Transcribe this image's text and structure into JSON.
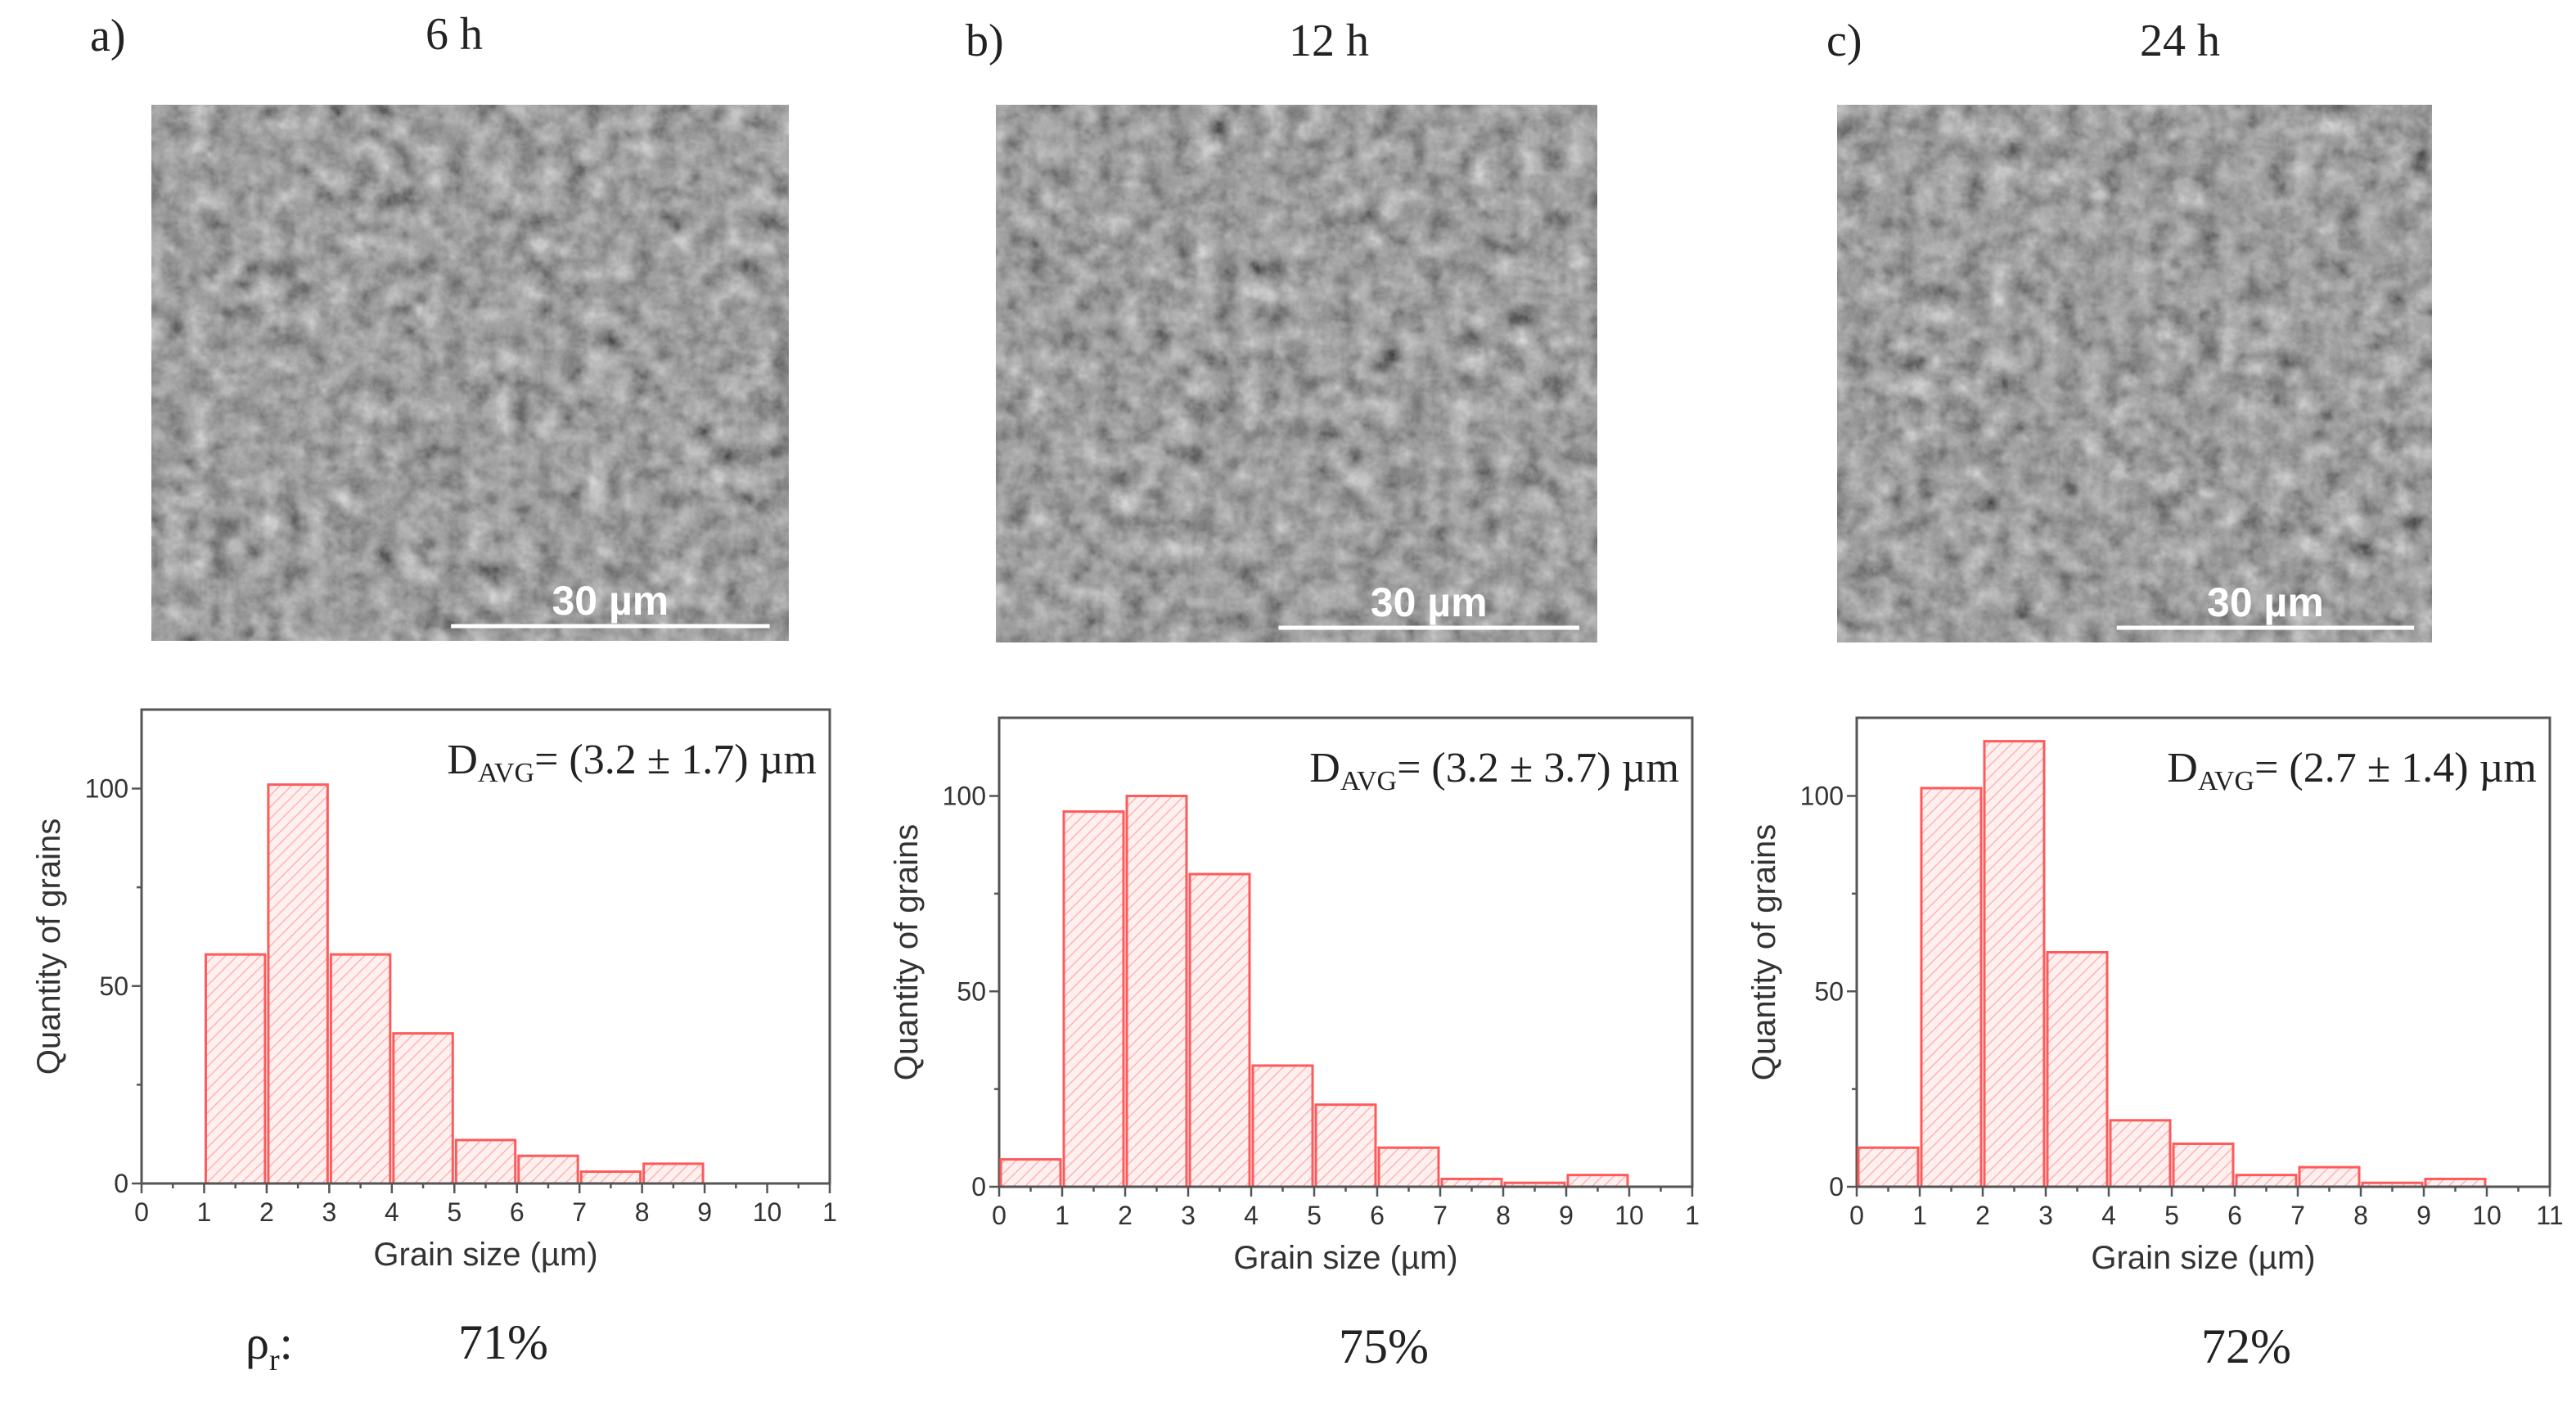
{
  "figure": {
    "density_label": {
      "main": "ρ",
      "sub": "r",
      "suffix": ":"
    },
    "panels": [
      {
        "label": "a)",
        "time": "6 h",
        "scale_bar": "30 µm",
        "density": "71%"
      },
      {
        "label": "b)",
        "time": "12 h",
        "scale_bar": "30 µm",
        "density": "75%"
      },
      {
        "label": "c)",
        "time": "24 h",
        "scale_bar": "30 µm",
        "density": "72%"
      }
    ]
  },
  "colors": {
    "bar_edge": "#ff5a5a",
    "bar_hatch": "#ffb3b3",
    "bar_fill": "#fff0f0",
    "axis": "#555555"
  },
  "chart_data": [
    {
      "type": "bar",
      "histogram": true,
      "bin_edges": [
        1,
        2,
        3,
        4,
        5,
        6,
        7,
        8,
        9
      ],
      "values": [
        58,
        101,
        58,
        38,
        11,
        7,
        3,
        5
      ],
      "xlabel": "Grain size (µm)",
      "ylabel": "Quantity of grains",
      "xlim": [
        0,
        11
      ],
      "ylim": [
        0,
        120
      ],
      "x_ticks": [
        "0",
        "1",
        "2",
        "3",
        "4",
        "5",
        "6",
        "7",
        "8",
        "9",
        "10",
        "1"
      ],
      "y_ticks": [
        "0",
        "50",
        "100"
      ],
      "annotation": {
        "main": "D",
        "sub": "AVG",
        "rest": "= (3.2 ± 1.7) µm"
      },
      "grid": false,
      "legend": "none"
    },
    {
      "type": "bar",
      "histogram": true,
      "bin_edges": [
        0,
        1,
        2,
        3,
        4,
        5,
        6,
        7,
        8,
        9,
        10
      ],
      "values": [
        7,
        96,
        100,
        80,
        31,
        21,
        10,
        2,
        1,
        3
      ],
      "xlabel": "Grain size (µm)",
      "ylabel": "Quantity of grains",
      "xlim": [
        0,
        11
      ],
      "ylim": [
        0,
        120
      ],
      "x_ticks": [
        "0",
        "1",
        "2",
        "3",
        "4",
        "5",
        "6",
        "7",
        "8",
        "9",
        "10",
        "1"
      ],
      "y_ticks": [
        "0",
        "50",
        "100"
      ],
      "annotation": {
        "main": "D",
        "sub": "AVG",
        "rest": "= (3.2 ± 3.7) µm"
      },
      "grid": false,
      "legend": "none"
    },
    {
      "type": "bar",
      "histogram": true,
      "bin_edges": [
        0,
        1,
        2,
        3,
        4,
        5,
        6,
        7,
        8,
        9,
        10
      ],
      "values": [
        10,
        102,
        114,
        60,
        17,
        11,
        3,
        5,
        1,
        2
      ],
      "xlabel": "Grain size (µm)",
      "ylabel": "Quantity of grains",
      "xlim": [
        0,
        11
      ],
      "ylim": [
        0,
        120
      ],
      "x_ticks": [
        "0",
        "1",
        "2",
        "3",
        "4",
        "5",
        "6",
        "7",
        "8",
        "9",
        "10",
        "11"
      ],
      "y_ticks": [
        "0",
        "50",
        "100"
      ],
      "annotation": {
        "main": "D",
        "sub": "AVG",
        "rest": "= (2.7 ± 1.4) µm"
      },
      "grid": false,
      "legend": "none"
    }
  ]
}
